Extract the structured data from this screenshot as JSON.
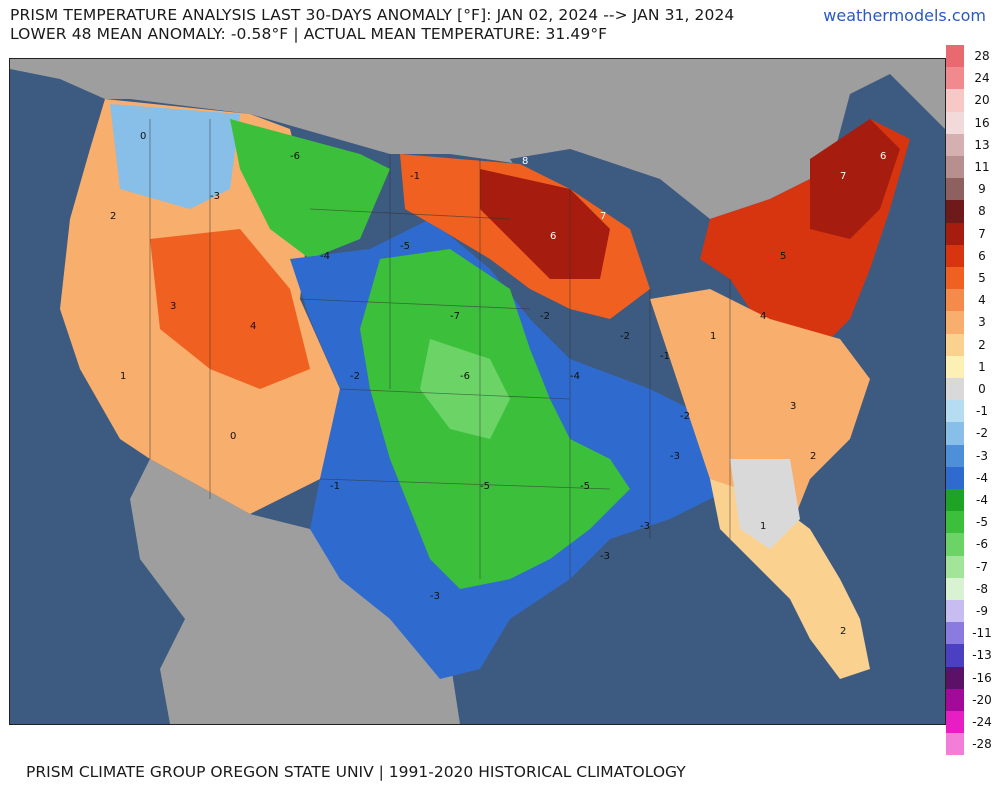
{
  "header": {
    "title_line1": "PRISM TEMPERATURE ANALYSIS LAST 30-DAYS ANOMALY [°F]: JAN 02, 2024 --> JAN 31, 2024",
    "title_line2": "LOWER 48 MEAN ANOMALY: -0.58°F | ACTUAL MEAN TEMPERATURE: 31.49°F",
    "site": "weathermodels.com"
  },
  "footer": {
    "text": "PRISM CLIMATE GROUP OREGON STATE UNIV | 1991-2020 HISTORICAL CLIMATOLOGY"
  },
  "legend": {
    "unit": "°F",
    "entries": [
      {
        "label": "28",
        "color": "#e8696f"
      },
      {
        "label": "24",
        "color": "#f08a8e"
      },
      {
        "label": "20",
        "color": "#f8c8c6"
      },
      {
        "label": "16",
        "color": "#f2dada"
      },
      {
        "label": "13",
        "color": "#d5b0b0"
      },
      {
        "label": "11",
        "color": "#b88f8f"
      },
      {
        "label": "9",
        "color": "#8f6060"
      },
      {
        "label": "8",
        "color": "#6e1a1a"
      },
      {
        "label": "7",
        "color": "#a61c0e"
      },
      {
        "label": "6",
        "color": "#d6350f"
      },
      {
        "label": "5",
        "color": "#f06020"
      },
      {
        "label": "4",
        "color": "#f48b4a"
      },
      {
        "label": "3",
        "color": "#f8ae6c"
      },
      {
        "label": "2",
        "color": "#fbd190"
      },
      {
        "label": "1",
        "color": "#fdf0b4"
      },
      {
        "label": "0",
        "color": "#d9d9d9"
      },
      {
        "label": "-1",
        "color": "#b6dcf2"
      },
      {
        "label": "-2",
        "color": "#88bfe8"
      },
      {
        "label": "-3",
        "color": "#4e8fda"
      },
      {
        "label": "-4",
        "color": "#2f6bcf"
      },
      {
        "label": "-4",
        "color": "#1fa324"
      },
      {
        "label": "-5",
        "color": "#3cbf3a"
      },
      {
        "label": "-6",
        "color": "#6cd466"
      },
      {
        "label": "-7",
        "color": "#a2e59a"
      },
      {
        "label": "-8",
        "color": "#d8f2d2"
      },
      {
        "label": "-9",
        "color": "#c7bdf0"
      },
      {
        "label": "-11",
        "color": "#8a7be0"
      },
      {
        "label": "-13",
        "color": "#4b3fc2"
      },
      {
        "label": "-16",
        "color": "#5a1166"
      },
      {
        "label": "-20",
        "color": "#a40a9a"
      },
      {
        "label": "-24",
        "color": "#e61ec4"
      },
      {
        "label": "-28",
        "color": "#f27ed9"
      }
    ]
  },
  "map": {
    "ocean_color": "#3d5a80",
    "land_outside_color": "#9e9e9e",
    "regions": [
      {
        "name": "great-plains-cold",
        "anomaly": -6
      },
      {
        "name": "upper-midwest-warm",
        "anomaly": 7
      },
      {
        "name": "northeast-warm",
        "anomaly": 6
      },
      {
        "name": "south-central-cold",
        "anomaly": -5
      }
    ],
    "labels": [
      {
        "id": "mn",
        "text": "8"
      },
      {
        "id": "mi",
        "text": "7"
      },
      {
        "id": "wi",
        "text": "6"
      },
      {
        "id": "me",
        "text": "6"
      },
      {
        "id": "vt",
        "text": "7"
      },
      {
        "id": "ny",
        "text": "5"
      },
      {
        "id": "pa",
        "text": "4"
      },
      {
        "id": "va",
        "text": "3"
      },
      {
        "id": "nc",
        "text": "2"
      },
      {
        "id": "fl",
        "text": "2"
      },
      {
        "id": "ga",
        "text": "1"
      },
      {
        "id": "ks",
        "text": "-6"
      },
      {
        "id": "ne",
        "text": "-7"
      },
      {
        "id": "ok",
        "text": "-5"
      },
      {
        "id": "tx",
        "text": "-3"
      },
      {
        "id": "ar",
        "text": "-5"
      },
      {
        "id": "la",
        "text": "-3"
      },
      {
        "id": "ms",
        "text": "-3"
      },
      {
        "id": "ky",
        "text": "-2"
      },
      {
        "id": "tn",
        "text": "-3"
      },
      {
        "id": "mt",
        "text": "-6"
      },
      {
        "id": "wy",
        "text": "-4"
      },
      {
        "id": "co",
        "text": "-2"
      },
      {
        "id": "nm",
        "text": "-1"
      },
      {
        "id": "az",
        "text": "0"
      },
      {
        "id": "nv",
        "text": "3"
      },
      {
        "id": "ut",
        "text": "4"
      },
      {
        "id": "or",
        "text": "2"
      },
      {
        "id": "ca",
        "text": "1"
      },
      {
        "id": "wa",
        "text": "0"
      },
      {
        "id": "id",
        "text": "-3"
      },
      {
        "id": "nd",
        "text": "-1"
      },
      {
        "id": "sd",
        "text": "-5"
      },
      {
        "id": "ia",
        "text": "-2"
      },
      {
        "id": "mo",
        "text": "-4"
      },
      {
        "id": "il",
        "text": "-2"
      },
      {
        "id": "in",
        "text": "-1"
      },
      {
        "id": "oh",
        "text": "1"
      }
    ]
  }
}
